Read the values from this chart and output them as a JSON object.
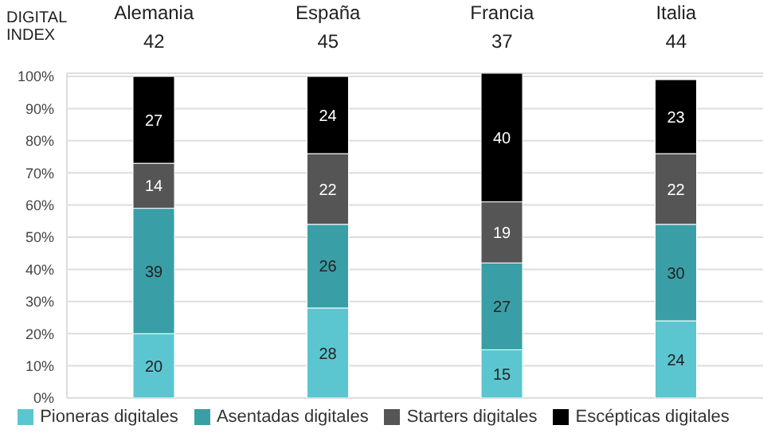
{
  "chart_data": {
    "type": "bar",
    "stacked": true,
    "categories": [
      "Alemania",
      "España",
      "Francia",
      "Italia"
    ],
    "series": [
      {
        "name": "Pioneras digitales",
        "color": "#5bc6d0",
        "values": [
          20,
          28,
          15,
          24
        ]
      },
      {
        "name": "Asentadas digitales",
        "color": "#3a9ea6",
        "values": [
          39,
          26,
          27,
          30
        ]
      },
      {
        "name": "Starters digitales",
        "color": "#555555",
        "values": [
          14,
          22,
          19,
          22
        ]
      },
      {
        "name": "Escépticas digitales",
        "color": "#000000",
        "values": [
          27,
          24,
          40,
          23
        ]
      }
    ],
    "ylim": [
      0,
      101
    ],
    "yticks": [
      {
        "value": 0,
        "label": "0%"
      },
      {
        "value": 10,
        "label": "10%"
      },
      {
        "value": 20,
        "label": "20%"
      },
      {
        "value": 30,
        "label": "30%"
      },
      {
        "value": 40,
        "label": "40%"
      },
      {
        "value": 50,
        "label": "50%"
      },
      {
        "value": 60,
        "label": "60%"
      },
      {
        "value": 70,
        "label": "70%"
      },
      {
        "value": 80,
        "label": "80%"
      },
      {
        "value": 90,
        "label": "90%"
      },
      {
        "value": 100,
        "label": "100%"
      }
    ],
    "grid": "y",
    "legend": "bottom",
    "data_labels": true,
    "annotations": [
      "DIGITAL INDEX",
      "42",
      "45",
      "37",
      "44"
    ]
  }
}
